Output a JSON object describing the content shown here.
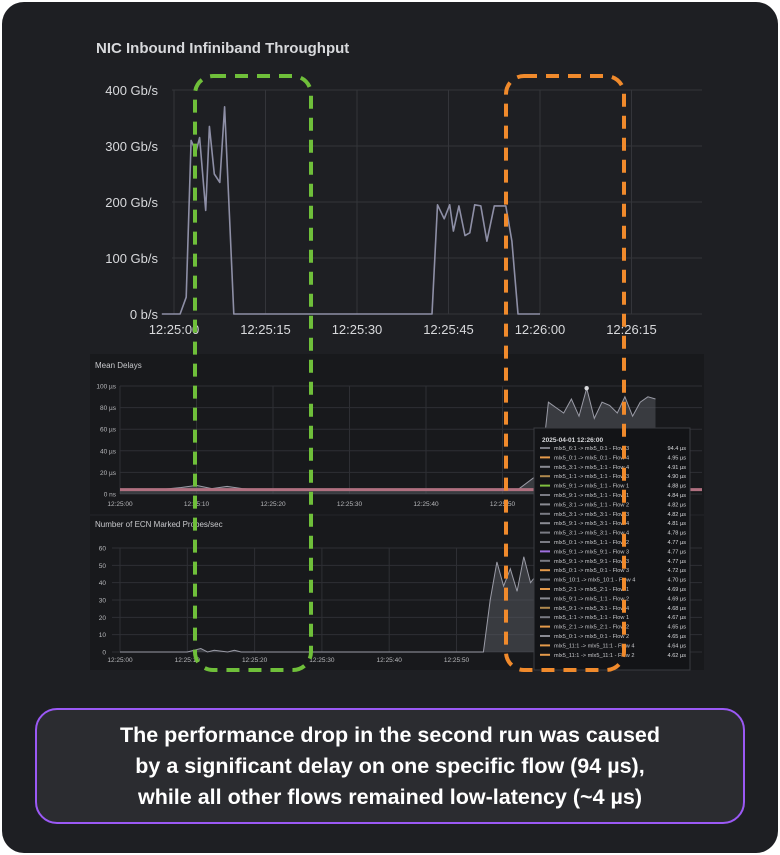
{
  "chart_data": [
    {
      "type": "line",
      "title": "NIC Inbound Infiniband Throughput",
      "y_tick_labels": [
        "0 b/s",
        "100 Gb/s",
        "200 Gb/s",
        "300 Gb/s",
        "400 Gb/s"
      ],
      "x_tick_labels": [
        "12:25:00",
        "12:25:15",
        "12:25:30",
        "12:25:45",
        "12:26:00",
        "12:26:15"
      ],
      "ylim": [
        0,
        400
      ],
      "grid": true,
      "x": [
        -2,
        0,
        1,
        2,
        2.8,
        3.6,
        4.2,
        5.2,
        5.8,
        6.6,
        7.5,
        8.3,
        9.2,
        9.8,
        10.5,
        11.6,
        20,
        41.5,
        42.3,
        43.2,
        44.3,
        45.2,
        45.8,
        46.7,
        47.7,
        48.5,
        49.3,
        50.3,
        51.3,
        52.5,
        53.4,
        54.4,
        55.4,
        56.4,
        57.3,
        58,
        60
      ],
      "values": [
        0,
        0,
        0,
        30,
        310,
        290,
        315,
        185,
        335,
        250,
        235,
        370,
        150,
        0,
        0,
        0,
        0,
        0,
        0,
        195,
        170,
        195,
        148,
        193,
        140,
        145,
        195,
        193,
        130,
        193,
        193,
        193,
        130,
        0,
        0,
        0,
        0
      ]
    },
    {
      "type": "area",
      "title": "Mean Delays",
      "y_tick_labels": [
        "0 ns",
        "20 µs",
        "40 µs",
        "60 µs",
        "80 µs",
        "100 µs"
      ],
      "x_tick_labels": [
        "12:25:00",
        "12:25:10",
        "12:25:20",
        "12:25:30",
        "12:25:40",
        "12:25:50"
      ],
      "ylim": [
        0,
        100
      ],
      "grid": true,
      "x": [
        0,
        5,
        8,
        10,
        12,
        14,
        16,
        18,
        20,
        22,
        25,
        30,
        40,
        50,
        52,
        55,
        56,
        57,
        58,
        59,
        60,
        61,
        62,
        63,
        64,
        65,
        66,
        67,
        68,
        69,
        70
      ],
      "values": [
        4,
        4,
        6,
        8,
        5,
        7,
        5,
        4,
        4,
        4,
        4,
        4,
        4,
        4,
        4,
        20,
        85,
        80,
        75,
        88,
        72,
        98,
        70,
        85,
        82,
        75,
        90,
        72,
        85,
        90,
        88
      ],
      "tooltip": {
        "time": "2025-04-01 12:26:00",
        "rows": [
          {
            "label": "mlx5_6:1 -> mlx5_0:1 - Flow 3",
            "value": "94.4 µs",
            "color": "#7a7b84"
          },
          {
            "label": "mlx5_0:1 -> mlx5_0:1 - Flow 4",
            "value": "4.95 µs",
            "color": "#e59a4b"
          },
          {
            "label": "mlx5_3:1 -> mlx5_1:1 - Flow 4",
            "value": "4.91 µs",
            "color": "#8a8b93"
          },
          {
            "label": "mlx5_1:1 -> mlx5_1:1 - Flow 3",
            "value": "4.90 µs",
            "color": "#b0894e"
          },
          {
            "label": "mlx5_9:1 -> mlx5_1:1 - Flow 1",
            "value": "4.88 µs",
            "color": "#7fbf3f"
          },
          {
            "label": "mlx5_9:1 -> mlx5_1:1 - Flow 1",
            "value": "4.84 µs",
            "color": "#7a7b84"
          },
          {
            "label": "mlx5_3:1 -> mlx5_1:1 - Flow 2",
            "value": "4.82 µs",
            "color": "#8a8b93"
          },
          {
            "label": "mlx5_3:1 -> mlx5_3:1 - Flow 3",
            "value": "4.82 µs",
            "color": "#7a7b84"
          },
          {
            "label": "mlx5_9:1 -> mlx5_3:1 - Flow 4",
            "value": "4.81 µs",
            "color": "#8a8b93"
          },
          {
            "label": "mlx5_3:1 -> mlx5_3:1 - Flow 4",
            "value": "4.78 µs",
            "color": "#7a7b84"
          },
          {
            "label": "mlx5_0:1 -> mlx5_1:1 - Flow 2",
            "value": "4.77 µs",
            "color": "#7a7b84"
          },
          {
            "label": "mlx5_9:1 -> mlx5_9:1 - Flow 3",
            "value": "4.77 µs",
            "color": "#a070e0"
          },
          {
            "label": "mlx5_9:1 -> mlx5_9:1 - Flow 3",
            "value": "4.77 µs",
            "color": "#7a7b84"
          },
          {
            "label": "mlx5_0:1 -> mlx5_0:1 - Flow 3",
            "value": "4.72 µs",
            "color": "#e59a4b"
          },
          {
            "label": "mlx5_10:1 -> mlx5_10:1 - Flow 4",
            "value": "4.70 µs",
            "color": "#7a7b84"
          },
          {
            "label": "mlx5_2:1 -> mlx5_2:1 - Flow 1",
            "value": "4.69 µs",
            "color": "#e59a4b"
          },
          {
            "label": "mlx5_9:1 -> mlx5_1:1 - Flow 2",
            "value": "4.69 µs",
            "color": "#8a8b93"
          },
          {
            "label": "mlx5_9:1 -> mlx5_3:1 - Flow 4",
            "value": "4.68 µs",
            "color": "#b0894e"
          },
          {
            "label": "mlx5_1:1 -> mlx5_1:1 - Flow 1",
            "value": "4.67 µs",
            "color": "#7a7b84"
          },
          {
            "label": "mlx5_2:1 -> mlx5_2:1 - Flow 2",
            "value": "4.65 µs",
            "color": "#e59a4b"
          },
          {
            "label": "mlx5_0:1 -> mlx5_0:1 - Flow 2",
            "value": "4.65 µs",
            "color": "#8a8b93"
          },
          {
            "label": "mlx5_11:1 -> mlx5_11:1 - Flow 4",
            "value": "4.64 µs",
            "color": "#e59a4b"
          },
          {
            "label": "mlx5_11:1 -> mlx5_11:1 - Flow 2",
            "value": "4.62 µs",
            "color": "#e59a4b"
          }
        ]
      }
    },
    {
      "type": "area",
      "title": "Number of ECN Marked Probes/sec",
      "y_tick_labels": [
        "0",
        "10",
        "20",
        "30",
        "40",
        "50",
        "60"
      ],
      "x_tick_labels": [
        "12:25:00",
        "12:25:10",
        "12:25:20",
        "12:25:30",
        "12:25:40",
        "12:25:50"
      ],
      "ylim": [
        0,
        60
      ],
      "grid": true,
      "x": [
        0,
        10,
        12,
        13,
        14,
        16,
        17,
        18,
        30,
        50,
        54,
        55,
        56,
        57,
        58,
        59,
        60,
        61,
        62
      ],
      "values": [
        0,
        0,
        2,
        0,
        1,
        0,
        1,
        0,
        0,
        0,
        0,
        30,
        52,
        38,
        48,
        35,
        55,
        40,
        45
      ]
    }
  ],
  "highlights": [
    {
      "name": "first-run",
      "color": "#6fbf3a"
    },
    {
      "name": "second-run",
      "color": "#f08a2c"
    }
  ],
  "caption": {
    "line1": "The performance drop in the second run was caused",
    "line2": "by a significant delay on one specific flow (94 µs),",
    "line3": "while all other flows remained low-latency (~4 µs)"
  }
}
